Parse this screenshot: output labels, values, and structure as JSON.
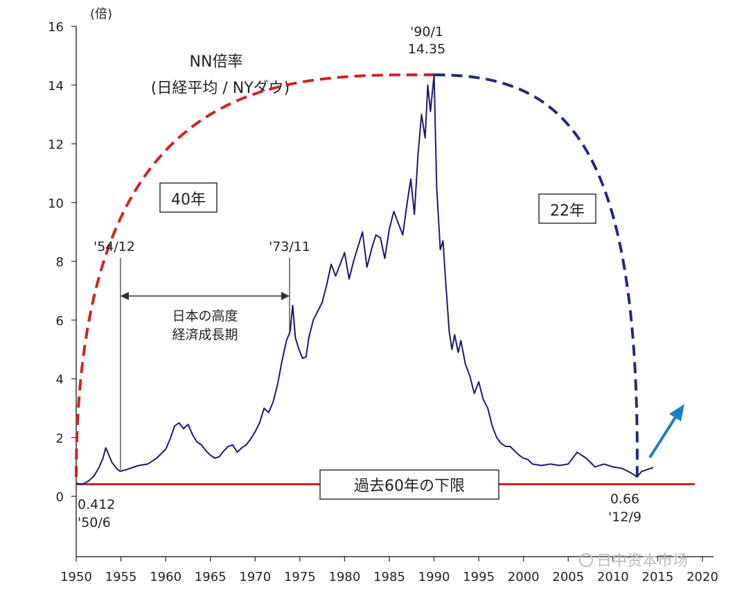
{
  "chart_data": {
    "type": "line",
    "title": "NN倍率",
    "subtitle": "(日経平均 / NYダウ)",
    "ylabel": "(倍)",
    "xlabel": "",
    "xlim": [
      1950,
      2020
    ],
    "ylim": [
      0,
      16
    ],
    "yticks": [
      "0",
      "2",
      "4",
      "6",
      "8",
      "10",
      "12",
      "14",
      "16"
    ],
    "xticks": [
      "1950",
      "1955",
      "1960",
      "1965",
      "1970",
      "1975",
      "1980",
      "1985",
      "1990",
      "1995",
      "2000",
      "2005",
      "2010",
      "2015",
      "2020"
    ],
    "grid": false,
    "colors": {
      "series": "#1a1a6e",
      "red_arc": "#d42020",
      "blue_arc": "#232a7a",
      "floor": "#d42020",
      "arrow": "#1a7fc4"
    },
    "series": [
      {
        "x": [
          1950.0,
          1950.5,
          1951.0,
          1951.5,
          1952.0,
          1952.5,
          1953.0,
          1953.3,
          1953.6,
          1954.0,
          1954.5,
          1954.9,
          1955.5,
          1956.0,
          1957.0,
          1958.0,
          1959.0,
          1960.0,
          1960.5,
          1961.0,
          1961.5,
          1962.0,
          1962.5,
          1963.0,
          1963.5,
          1964.0,
          1964.5,
          1965.0,
          1965.5,
          1966.0,
          1966.5,
          1967.0,
          1967.5,
          1968.0,
          1968.5,
          1969.0,
          1969.5,
          1970.0,
          1970.5,
          1971.0,
          1971.5,
          1972.0,
          1972.5,
          1973.0,
          1973.5,
          1973.9,
          1974.2,
          1974.5,
          1974.9,
          1975.3,
          1975.7,
          1976.0,
          1976.5,
          1977.0,
          1977.5,
          1978.0,
          1978.5,
          1979.0,
          1979.5,
          1980.0,
          1980.5,
          1981.0,
          1981.5,
          1982.0,
          1982.5,
          1983.0,
          1983.5,
          1984.0,
          1984.5,
          1985.0,
          1985.5,
          1986.0,
          1986.5,
          1987.0,
          1987.4,
          1987.8,
          1988.2,
          1988.6,
          1989.0,
          1989.3,
          1989.6,
          1990.0,
          1990.3,
          1990.7,
          1991.0,
          1991.3,
          1991.7,
          1992.0,
          1992.3,
          1992.7,
          1993.0,
          1993.5,
          1994.0,
          1994.5,
          1995.0,
          1995.5,
          1996.0,
          1996.5,
          1997.0,
          1997.5,
          1998.0,
          1998.5,
          1999.0,
          1999.5,
          2000.0,
          2000.5,
          2001.0,
          2002.0,
          2003.0,
          2004.0,
          2005.0,
          2006.0,
          2007.0,
          2008.0,
          2009.0,
          2010.0,
          2011.0,
          2012.0,
          2012.7,
          2013.2,
          2013.7,
          2014.2,
          2014.5
        ],
        "values": [
          0.45,
          0.41,
          0.45,
          0.55,
          0.7,
          0.95,
          1.3,
          1.65,
          1.45,
          1.15,
          0.95,
          0.85,
          0.9,
          0.95,
          1.05,
          1.1,
          1.3,
          1.6,
          1.95,
          2.4,
          2.5,
          2.3,
          2.45,
          2.1,
          1.85,
          1.75,
          1.55,
          1.4,
          1.3,
          1.35,
          1.55,
          1.7,
          1.75,
          1.5,
          1.65,
          1.75,
          1.95,
          2.2,
          2.5,
          3.0,
          2.85,
          3.2,
          3.8,
          4.6,
          5.3,
          5.6,
          6.5,
          5.4,
          5.0,
          4.7,
          4.75,
          5.4,
          6.0,
          6.3,
          6.6,
          7.2,
          7.9,
          7.5,
          7.9,
          8.3,
          7.4,
          8.0,
          8.5,
          9.0,
          7.8,
          8.4,
          8.9,
          8.8,
          8.1,
          9.1,
          9.7,
          9.3,
          8.9,
          10.0,
          10.8,
          9.6,
          11.6,
          13.0,
          12.2,
          14.0,
          13.1,
          14.35,
          10.5,
          8.4,
          8.7,
          7.3,
          5.6,
          5.0,
          5.5,
          4.9,
          5.3,
          4.5,
          4.1,
          3.5,
          3.9,
          3.3,
          3.0,
          2.4,
          2.0,
          1.8,
          1.7,
          1.7,
          1.55,
          1.4,
          1.3,
          1.25,
          1.1,
          1.05,
          1.1,
          1.05,
          1.1,
          1.5,
          1.3,
          1.0,
          1.1,
          1.0,
          0.95,
          0.8,
          0.66,
          0.85,
          0.9,
          0.95,
          0.98
        ]
      }
    ],
    "annotations": {
      "peak": [
        "'90/1",
        "14.35"
      ],
      "high_growth_start": "'54/12",
      "high_growth_end": "'73/11",
      "high_growth_label": [
        "日本の高度",
        "経済成長期"
      ],
      "low_1950": [
        "0.412",
        "'50/6"
      ],
      "low_2012": [
        "0.66",
        "'12/9"
      ],
      "rise_years": "40年",
      "fall_years": "22年",
      "floor_label": "過去60年の下限"
    },
    "watermark": "日中资本市场"
  }
}
